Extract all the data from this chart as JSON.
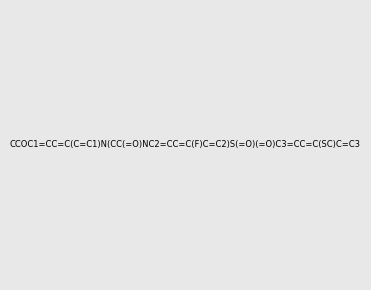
{
  "smiles": "CCOC1=CC=C(C=C1)N(CC(=O)NC2=CC=C(F)C=C2)S(=O)(=O)C3=CC=C(SC)C=C3",
  "image_size": 300,
  "background_color": "#e8e8e8",
  "title": ""
}
